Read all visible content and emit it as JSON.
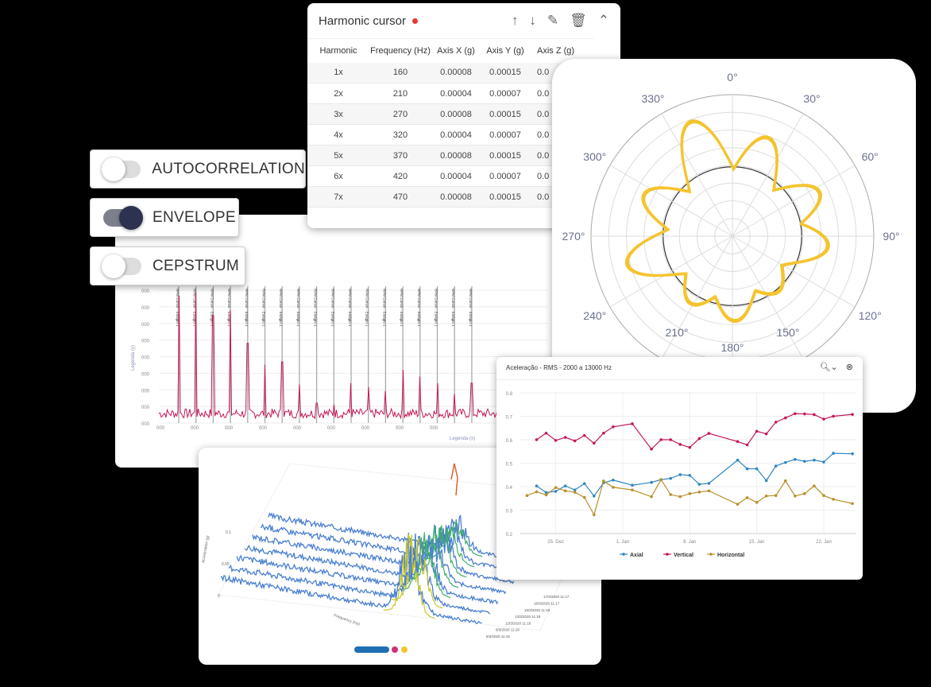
{
  "toggles": [
    {
      "label": "AUTOCORRELATION",
      "on": false
    },
    {
      "label": "ENVELOPE",
      "on": true
    },
    {
      "label": "CEPSTRUM",
      "on": false
    }
  ],
  "harmonic_cursor": {
    "title": "Harmonic cursor",
    "status_color": "#e53935",
    "icons": [
      "arrow-up-icon",
      "arrow-down-icon",
      "pencil-icon",
      "trash-icon",
      "chevron-up-icon"
    ],
    "columns": [
      "Harmonic",
      "Frequency (Hz)",
      "Axis X (g)",
      "Axis Y (g)",
      "Axis Z (g)"
    ],
    "rows": [
      [
        "1x",
        "160",
        "0.00008",
        "0.00015",
        "0.0"
      ],
      [
        "2x",
        "210",
        "0.00004",
        "0.00007",
        "0.0"
      ],
      [
        "3x",
        "270",
        "0.00008",
        "0.00015",
        "0.0"
      ],
      [
        "4x",
        "320",
        "0.00004",
        "0.00007",
        "0.0"
      ],
      [
        "5x",
        "370",
        "0.00008",
        "0.00015",
        "0.0"
      ],
      [
        "6x",
        "420",
        "0.00004",
        "0.00007",
        "0.0"
      ],
      [
        "7x",
        "470",
        "0.00008",
        "0.00015",
        "0.0"
      ]
    ]
  },
  "chart_data": [
    {
      "type": "line",
      "id": "spectrum",
      "xlabel": "Legenda (x)",
      "ylabel": "Legenda (y)",
      "ytick_labels": [
        "000",
        "000",
        "000",
        "000",
        "000",
        "000",
        "000",
        "000",
        "000"
      ],
      "xtick_labels": [
        "000",
        "000",
        "000",
        "000",
        "000",
        "000",
        "000",
        "000",
        "000"
      ],
      "cursor_label": "RPM Cursor - Estágio 1",
      "color": "#c2185b",
      "harmonic_peaks_relative": [
        0.96,
        0.99,
        0.81,
        0.85,
        0.6,
        0.44,
        0.46,
        0.29,
        0.15,
        0.14,
        0.3,
        0.27,
        0.24,
        0.4,
        0.35,
        0.3,
        0.22,
        0.3
      ]
    },
    {
      "type": "polar",
      "id": "orbit",
      "angle_labels": [
        "0°",
        "30°",
        "60°",
        "90°",
        "120°",
        "150°",
        "180°",
        "210°",
        "240°",
        "270°",
        "300°",
        "330°"
      ],
      "color": "#f4c430",
      "lobes": [
        {
          "angle": 340,
          "r": 0.85
        },
        {
          "angle": 20,
          "r": 0.73
        },
        {
          "angle": 63,
          "r": 0.68
        },
        {
          "angle": 96,
          "r": 0.67
        },
        {
          "angle": 140,
          "r": 0.5
        },
        {
          "angle": 178,
          "r": 0.59
        },
        {
          "angle": 212,
          "r": 0.55
        },
        {
          "angle": 255,
          "r": 0.76
        },
        {
          "angle": 295,
          "r": 0.68
        }
      ],
      "reference_circle_r": 0.49
    },
    {
      "type": "line",
      "id": "rms",
      "title": "Aceleração - RMS - 2000 a 13000 Hz",
      "ylim": [
        0.2,
        0.8
      ],
      "yticks": [
        "0.8",
        "0.7",
        "0.6",
        "0.5",
        "0.4",
        "0.3",
        "0.2"
      ],
      "xticks": [
        "25. Dez",
        "1. Jan",
        "8. Jan",
        "15. Jan",
        "22. Jan"
      ],
      "legend": "bottom",
      "grid": true,
      "x": [
        "22 Dez",
        "23 Dez",
        "24 Dez",
        "25 Dez",
        "26 Dez",
        "27 Dez",
        "28 Dez",
        "29 Dez",
        "30 Dez",
        "31 Dez",
        "1 Jan",
        "3 Jan",
        "4 Jan",
        "5 Jan",
        "6 Jan",
        "7 Jan",
        "8 Jan",
        "9 Jan",
        "12 Jan",
        "13 Jan",
        "14 Jan",
        "15 Jan",
        "16 Jan",
        "17 Jan",
        "18 Jan",
        "19 Jan",
        "20 Jan",
        "21 Jan",
        "22 Jan",
        "24 Jan"
      ],
      "series": [
        {
          "name": "Axial",
          "color": "#2e86c1",
          "values": [
            null,
            0.403,
            0.375,
            0.38,
            0.403,
            0.386,
            0.413,
            0.36,
            0.416,
            0.428,
            0.406,
            0.418,
            0.43,
            0.435,
            0.451,
            0.448,
            0.41,
            0.414,
            0.513,
            0.476,
            0.476,
            0.426,
            0.488,
            0.503,
            0.516,
            0.508,
            0.513,
            0.505,
            0.542,
            0.54
          ]
        },
        {
          "name": "Vertical",
          "color": "#c2185b",
          "values": [
            null,
            0.6,
            0.628,
            0.597,
            0.61,
            0.595,
            0.618,
            0.585,
            0.628,
            0.655,
            0.668,
            0.56,
            0.6,
            0.6,
            0.58,
            0.567,
            0.605,
            0.627,
            0.592,
            0.578,
            0.636,
            0.625,
            0.675,
            0.693,
            0.711,
            0.71,
            0.707,
            0.688,
            0.7,
            0.708
          ]
        },
        {
          "name": "Horizontal",
          "color": "#b8902a",
          "values": [
            0.362,
            0.378,
            0.365,
            0.396,
            0.382,
            0.376,
            0.354,
            0.28,
            0.424,
            0.397,
            0.386,
            0.357,
            0.43,
            0.366,
            0.357,
            0.37,
            0.377,
            0.382,
            0.325,
            0.353,
            0.333,
            0.36,
            0.362,
            0.425,
            0.36,
            0.37,
            0.403,
            0.362,
            0.346,
            0.328
          ]
        }
      ]
    },
    {
      "type": "waterfall",
      "id": "waterfall",
      "xlabel": "Frequency (Hz)",
      "ylabel": "Acceleration (g)",
      "zticks": [
        "0",
        "0.05",
        "0.1"
      ],
      "slices": [
        "8/3/2020 11:18",
        "9/3/2020 11:18",
        "12/3/2020 11:18",
        "13/3/2020 11:18",
        "15/3/2020 11:18",
        "16/3/2020 11:17",
        "17/3/2020 11:17"
      ],
      "colors": [
        "#4a7fd0",
        "#3fae6a",
        "#c8c82a",
        "#e0602a"
      ]
    }
  ]
}
